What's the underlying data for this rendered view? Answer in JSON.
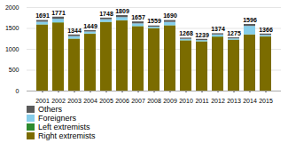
{
  "chart_data": {
    "type": "bar",
    "stacked": true,
    "categories": [
      "2001",
      "2002",
      "2003",
      "2004",
      "2005",
      "2006",
      "2007",
      "2008",
      "2009",
      "2010",
      "2011",
      "2012",
      "2013",
      "2014",
      "2015"
    ],
    "series": [
      {
        "name": "Right extremists",
        "color": "#7b6c00",
        "values": [
          1580,
          1630,
          1240,
          1360,
          1640,
          1680,
          1540,
          1490,
          1560,
          1200,
          1175,
          1290,
          1215,
          1340,
          1295
        ]
      },
      {
        "name": "Left extremists",
        "color": "#2e8b2e",
        "values": [
          8,
          8,
          8,
          8,
          8,
          8,
          8,
          8,
          8,
          8,
          8,
          8,
          8,
          8,
          8
        ]
      },
      {
        "name": "Foreigners",
        "color": "#87ceeb",
        "values": [
          62,
          82,
          57,
          47,
          62,
          72,
          62,
          32,
          77,
          32,
          27,
          47,
          27,
          202,
          32
        ]
      },
      {
        "name": "Others",
        "color": "#5a5a5a",
        "values": [
          41,
          51,
          39,
          34,
          38,
          49,
          47,
          29,
          45,
          28,
          29,
          29,
          25,
          46,
          31
        ]
      }
    ],
    "totals": [
      1691,
      1771,
      1344,
      1449,
      1748,
      1809,
      1657,
      1559,
      1690,
      1268,
      1239,
      1374,
      1275,
      1596,
      1366
    ],
    "ylim": [
      0,
      2000
    ],
    "yticks": [
      0,
      500,
      1000,
      1500,
      2000
    ],
    "grid": true,
    "legend": "lower left"
  }
}
